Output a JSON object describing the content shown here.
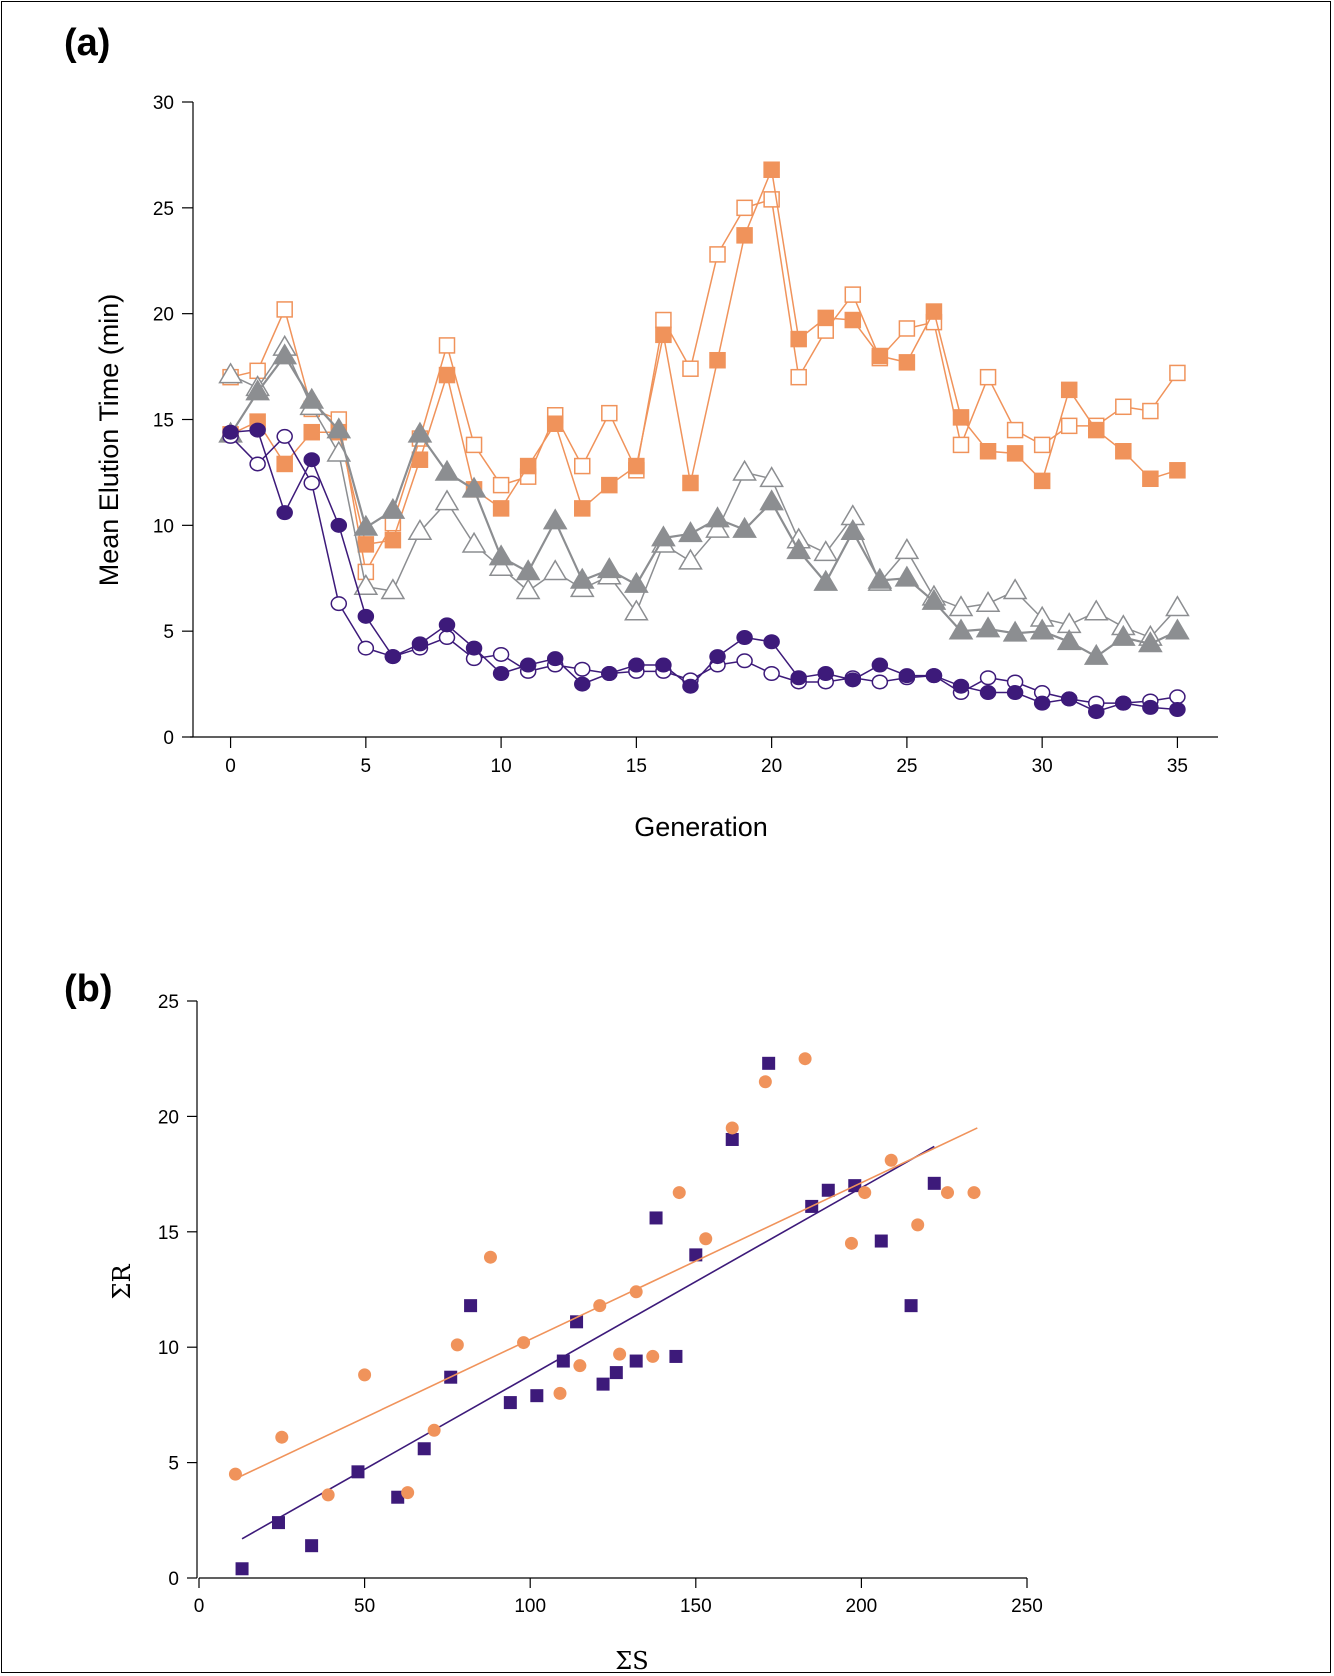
{
  "panel_a": {
    "label": "(a)",
    "chart_data": {
      "type": "line",
      "xlabel": "Generation",
      "ylabel": "Mean Elution Time (min)",
      "xlim": [
        -1.5,
        36.5
      ],
      "ylim": [
        0,
        30
      ],
      "xticks": [
        0,
        5,
        10,
        15,
        20,
        25,
        30,
        35
      ],
      "yticks": [
        0,
        5,
        10,
        15,
        20,
        25,
        30
      ],
      "x": [
        0,
        1,
        2,
        3,
        4,
        5,
        6,
        7,
        8,
        9,
        10,
        11,
        12,
        13,
        14,
        15,
        16,
        17,
        18,
        19,
        20,
        21,
        22,
        23,
        24,
        25,
        26,
        27,
        28,
        29,
        30,
        31,
        32,
        33,
        34,
        35
      ],
      "series": [
        {
          "marker": "square",
          "filled": false,
          "color": "#f0935b",
          "values": [
            17.0,
            17.3,
            20.2,
            15.5,
            15.0,
            7.8,
            10.1,
            14.1,
            18.5,
            13.8,
            11.9,
            12.3,
            15.2,
            12.8,
            15.3,
            12.6,
            19.7,
            17.4,
            22.8,
            25.0,
            25.4,
            17.0,
            19.2,
            20.9,
            17.9,
            19.3,
            19.6,
            13.8,
            17.0,
            14.5,
            13.8,
            14.7,
            14.7,
            15.6,
            15.4,
            17.2
          ]
        },
        {
          "marker": "square",
          "filled": true,
          "color": "#f0935b",
          "values": [
            14.3,
            14.9,
            12.9,
            14.4,
            14.4,
            9.1,
            9.3,
            13.1,
            17.1,
            11.7,
            10.8,
            12.8,
            14.8,
            10.8,
            11.9,
            12.8,
            19.0,
            12.0,
            17.8,
            23.7,
            26.8,
            18.8,
            19.8,
            19.7,
            18.0,
            17.7,
            20.1,
            15.1,
            13.5,
            13.4,
            12.1,
            16.4,
            14.5,
            13.5,
            12.2,
            12.6
          ]
        },
        {
          "marker": "triangle",
          "filled": false,
          "color": "#8c8e91",
          "values": [
            17.1,
            16.5,
            18.4,
            15.6,
            13.4,
            7.1,
            6.9,
            9.7,
            11.1,
            9.1,
            8.0,
            6.9,
            7.8,
            7.0,
            7.6,
            5.9,
            9.1,
            8.3,
            9.8,
            12.5,
            12.2,
            9.3,
            8.7,
            10.4,
            7.3,
            8.8,
            6.6,
            6.1,
            6.3,
            6.9,
            5.6,
            5.3,
            5.9,
            5.2,
            4.7,
            6.1
          ]
        },
        {
          "marker": "triangle",
          "filled": true,
          "color": "#8c8e91",
          "values": [
            14.3,
            16.3,
            18.0,
            15.9,
            14.5,
            9.9,
            10.7,
            14.3,
            12.5,
            11.7,
            8.5,
            7.8,
            10.2,
            7.4,
            7.9,
            7.2,
            9.4,
            9.6,
            10.3,
            9.8,
            11.1,
            8.8,
            7.3,
            9.7,
            7.4,
            7.5,
            6.4,
            5.0,
            5.1,
            4.9,
            5.0,
            4.5,
            3.8,
            4.7,
            4.4,
            5.0
          ]
        },
        {
          "marker": "circle",
          "filled": false,
          "color": "#3d1a7a",
          "values": [
            14.2,
            12.9,
            14.2,
            12.0,
            6.3,
            4.2,
            3.8,
            4.2,
            4.7,
            3.7,
            3.9,
            3.1,
            3.4,
            3.2,
            3.0,
            3.1,
            3.1,
            2.7,
            3.4,
            3.6,
            3.0,
            2.6,
            2.6,
            2.8,
            2.6,
            2.8,
            2.9,
            2.1,
            2.8,
            2.6,
            2.1,
            1.8,
            1.6,
            1.6,
            1.7,
            1.9
          ]
        },
        {
          "marker": "circle",
          "filled": true,
          "color": "#3d1a7a",
          "values": [
            14.4,
            14.5,
            10.6,
            13.1,
            10.0,
            5.7,
            3.8,
            4.4,
            5.3,
            4.2,
            3.0,
            3.4,
            3.7,
            2.5,
            3.0,
            3.4,
            3.4,
            2.4,
            3.8,
            4.7,
            4.5,
            2.8,
            3.0,
            2.7,
            3.4,
            2.9,
            2.9,
            2.4,
            2.1,
            2.1,
            1.6,
            1.8,
            1.2,
            1.6,
            1.4,
            1.3
          ]
        }
      ]
    }
  },
  "panel_b": {
    "label": "(b)",
    "chart_data": {
      "type": "scatter",
      "xlabel": "ΣS",
      "ylabel": "ΣR",
      "xlim": [
        0,
        250
      ],
      "ylim": [
        0,
        25
      ],
      "xticks": [
        0,
        50,
        100,
        150,
        200,
        250
      ],
      "yticks": [
        0,
        5,
        10,
        15,
        20,
        25
      ],
      "series": [
        {
          "marker": "square",
          "color": "#3d1a7a",
          "x": [
            13,
            24,
            34,
            48,
            60,
            68,
            76,
            82,
            94,
            102,
            110,
            114,
            122,
            126,
            132,
            138,
            144,
            150,
            161,
            172,
            185,
            190,
            198,
            206,
            215,
            222
          ],
          "y": [
            0.4,
            2.4,
            1.4,
            4.6,
            3.5,
            5.6,
            8.7,
            11.8,
            7.6,
            7.9,
            9.4,
            11.1,
            8.4,
            8.9,
            9.4,
            15.6,
            9.6,
            14.0,
            19.0,
            22.3,
            16.1,
            16.8,
            17.0,
            14.6,
            11.8,
            17.1
          ],
          "fit": {
            "x": [
              13,
              222
            ],
            "y": [
              1.7,
              18.7
            ]
          }
        },
        {
          "marker": "circle",
          "color": "#f0935b",
          "x": [
            11,
            25,
            39,
            50,
            63,
            71,
            78,
            88,
            98,
            109,
            115,
            121,
            127,
            132,
            137,
            145,
            153,
            161,
            171,
            183,
            197,
            201,
            209,
            217,
            226,
            234
          ],
          "y": [
            4.5,
            6.1,
            3.6,
            8.8,
            3.7,
            6.4,
            10.1,
            13.9,
            10.2,
            8.0,
            9.2,
            11.8,
            9.7,
            12.4,
            9.6,
            16.7,
            14.7,
            19.5,
            21.5,
            22.5,
            14.5,
            16.7,
            18.1,
            15.3,
            16.7,
            16.7
          ],
          "fit": {
            "x": [
              11,
              235
            ],
            "y": [
              4.3,
              19.5
            ]
          }
        }
      ]
    }
  }
}
